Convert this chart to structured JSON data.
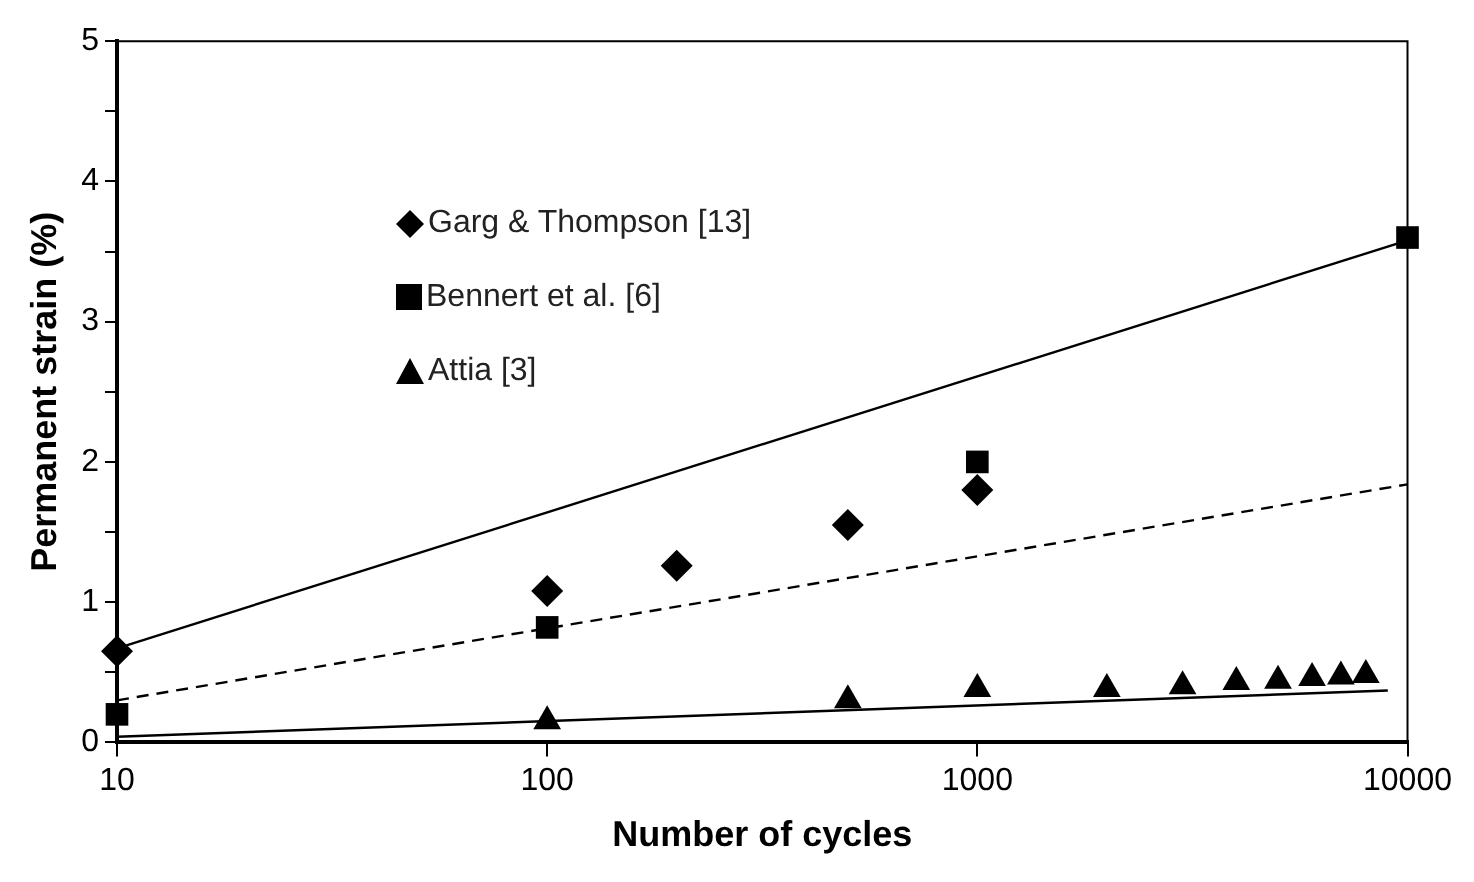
{
  "chart_data": {
    "type": "scatter",
    "xlabel": "Number of cycles",
    "ylabel": "Permanent strain (%)",
    "log": "x",
    "xlim": [
      10,
      10000
    ],
    "xticks": [
      10,
      100,
      1000,
      10000
    ],
    "ylim": [
      0,
      5
    ],
    "yticks": [
      0,
      {
        "value": 0.5,
        "label": null
      },
      1,
      {
        "value": 1.5,
        "label": null
      },
      2,
      {
        "value": 2.5,
        "label": null
      },
      3,
      {
        "value": 3.5,
        "label": null
      },
      4,
      {
        "value": 4.5,
        "label": null
      },
      5
    ],
    "grid": false,
    "legend": "top left",
    "series": [
      {
        "name": "Garg & Thompson [13]",
        "color": "#000000",
        "marker": "diamond",
        "x": [
          10,
          100,
          200,
          500,
          1000
        ],
        "values": [
          0.65,
          1.08,
          1.26,
          1.55,
          1.8
        ]
      },
      {
        "name": "Bennert et al. [6]",
        "color": "#000000",
        "marker": "square",
        "x": [
          10,
          100,
          1000,
          10000
        ],
        "values": [
          0.2,
          0.82,
          2.0,
          3.6
        ]
      },
      {
        "name": "Attia [3]",
        "color": "#000000",
        "marker": "triangle",
        "x": [
          100,
          500,
          1000,
          2000,
          3000,
          4000,
          5000,
          6000,
          7000,
          8000
        ],
        "values": [
          0.15,
          0.3,
          0.38,
          0.38,
          0.4,
          0.43,
          0.44,
          0.46,
          0.47,
          0.48
        ]
      },
      {
        "type": "line",
        "color": "#000000",
        "marker": "none",
        "line_style": "solid",
        "x": [
          10,
          10000
        ],
        "values": [
          0.67,
          3.58
        ]
      },
      {
        "type": "line",
        "color": "#000000",
        "marker": "none",
        "line_style": "dashed",
        "x": [
          10,
          10000
        ],
        "values": [
          0.3,
          1.84
        ]
      },
      {
        "type": "line",
        "color": "#000000",
        "marker": "none",
        "line_style": "solid",
        "x": [
          10,
          9000
        ],
        "values": [
          0.04,
          0.37
        ]
      }
    ]
  }
}
